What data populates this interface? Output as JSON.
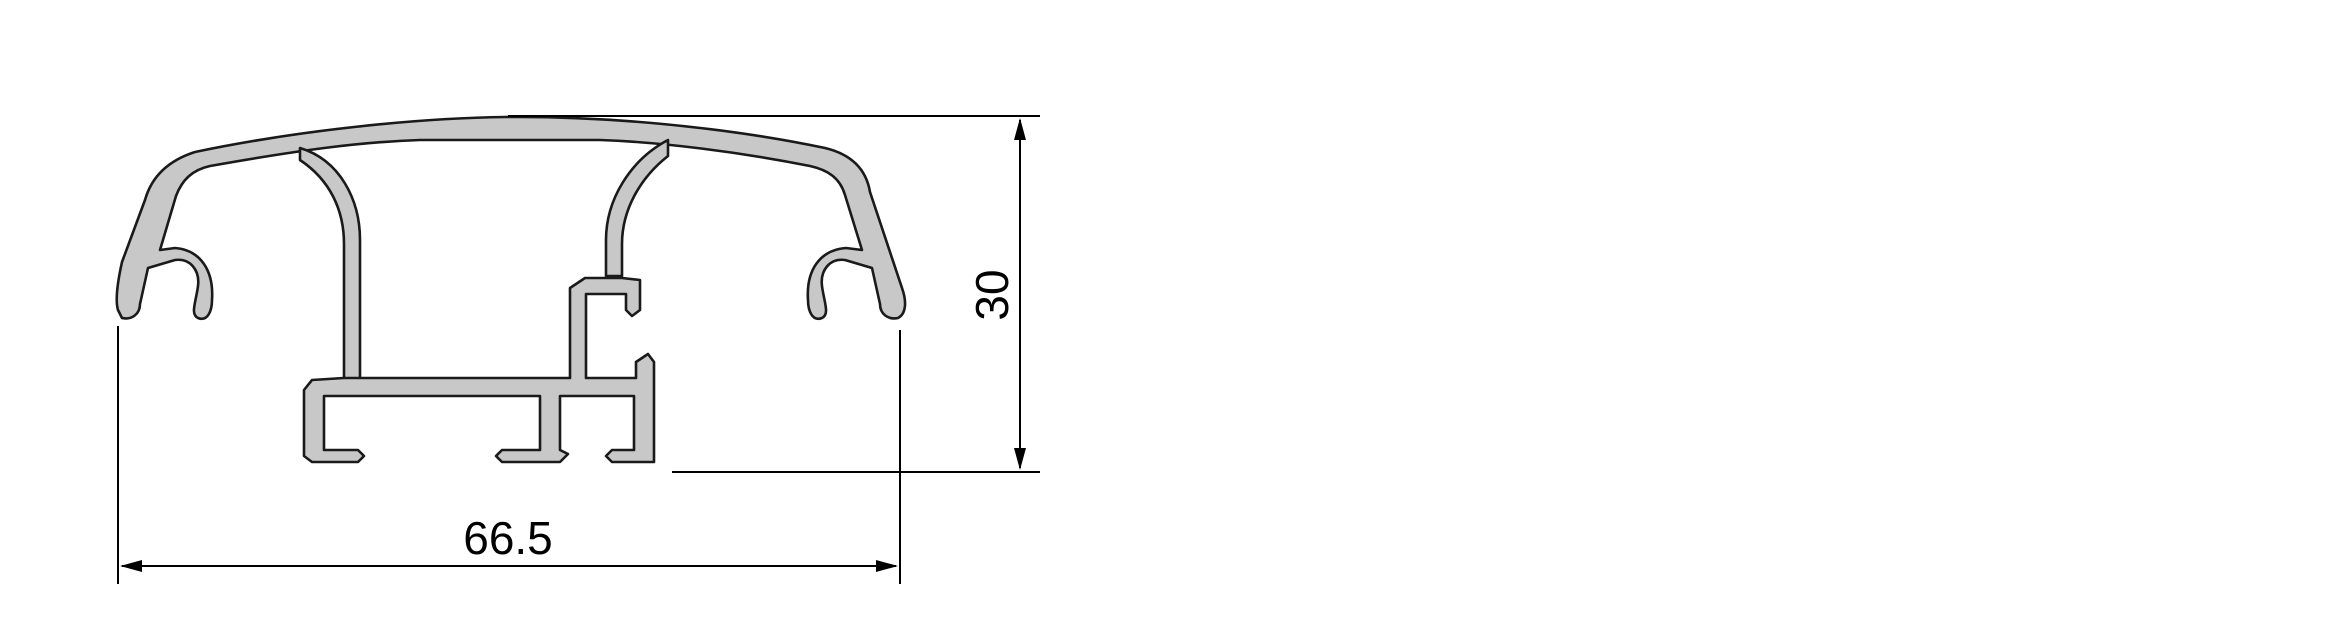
{
  "diagram": {
    "colors": {
      "profile_fill": "#c8c8c8",
      "profile_stroke": "#1a1a1a",
      "dimension": "#000000",
      "background": "#ffffff"
    },
    "dimensions": {
      "width": {
        "label": "66.5"
      },
      "height": {
        "label": "30"
      }
    }
  }
}
